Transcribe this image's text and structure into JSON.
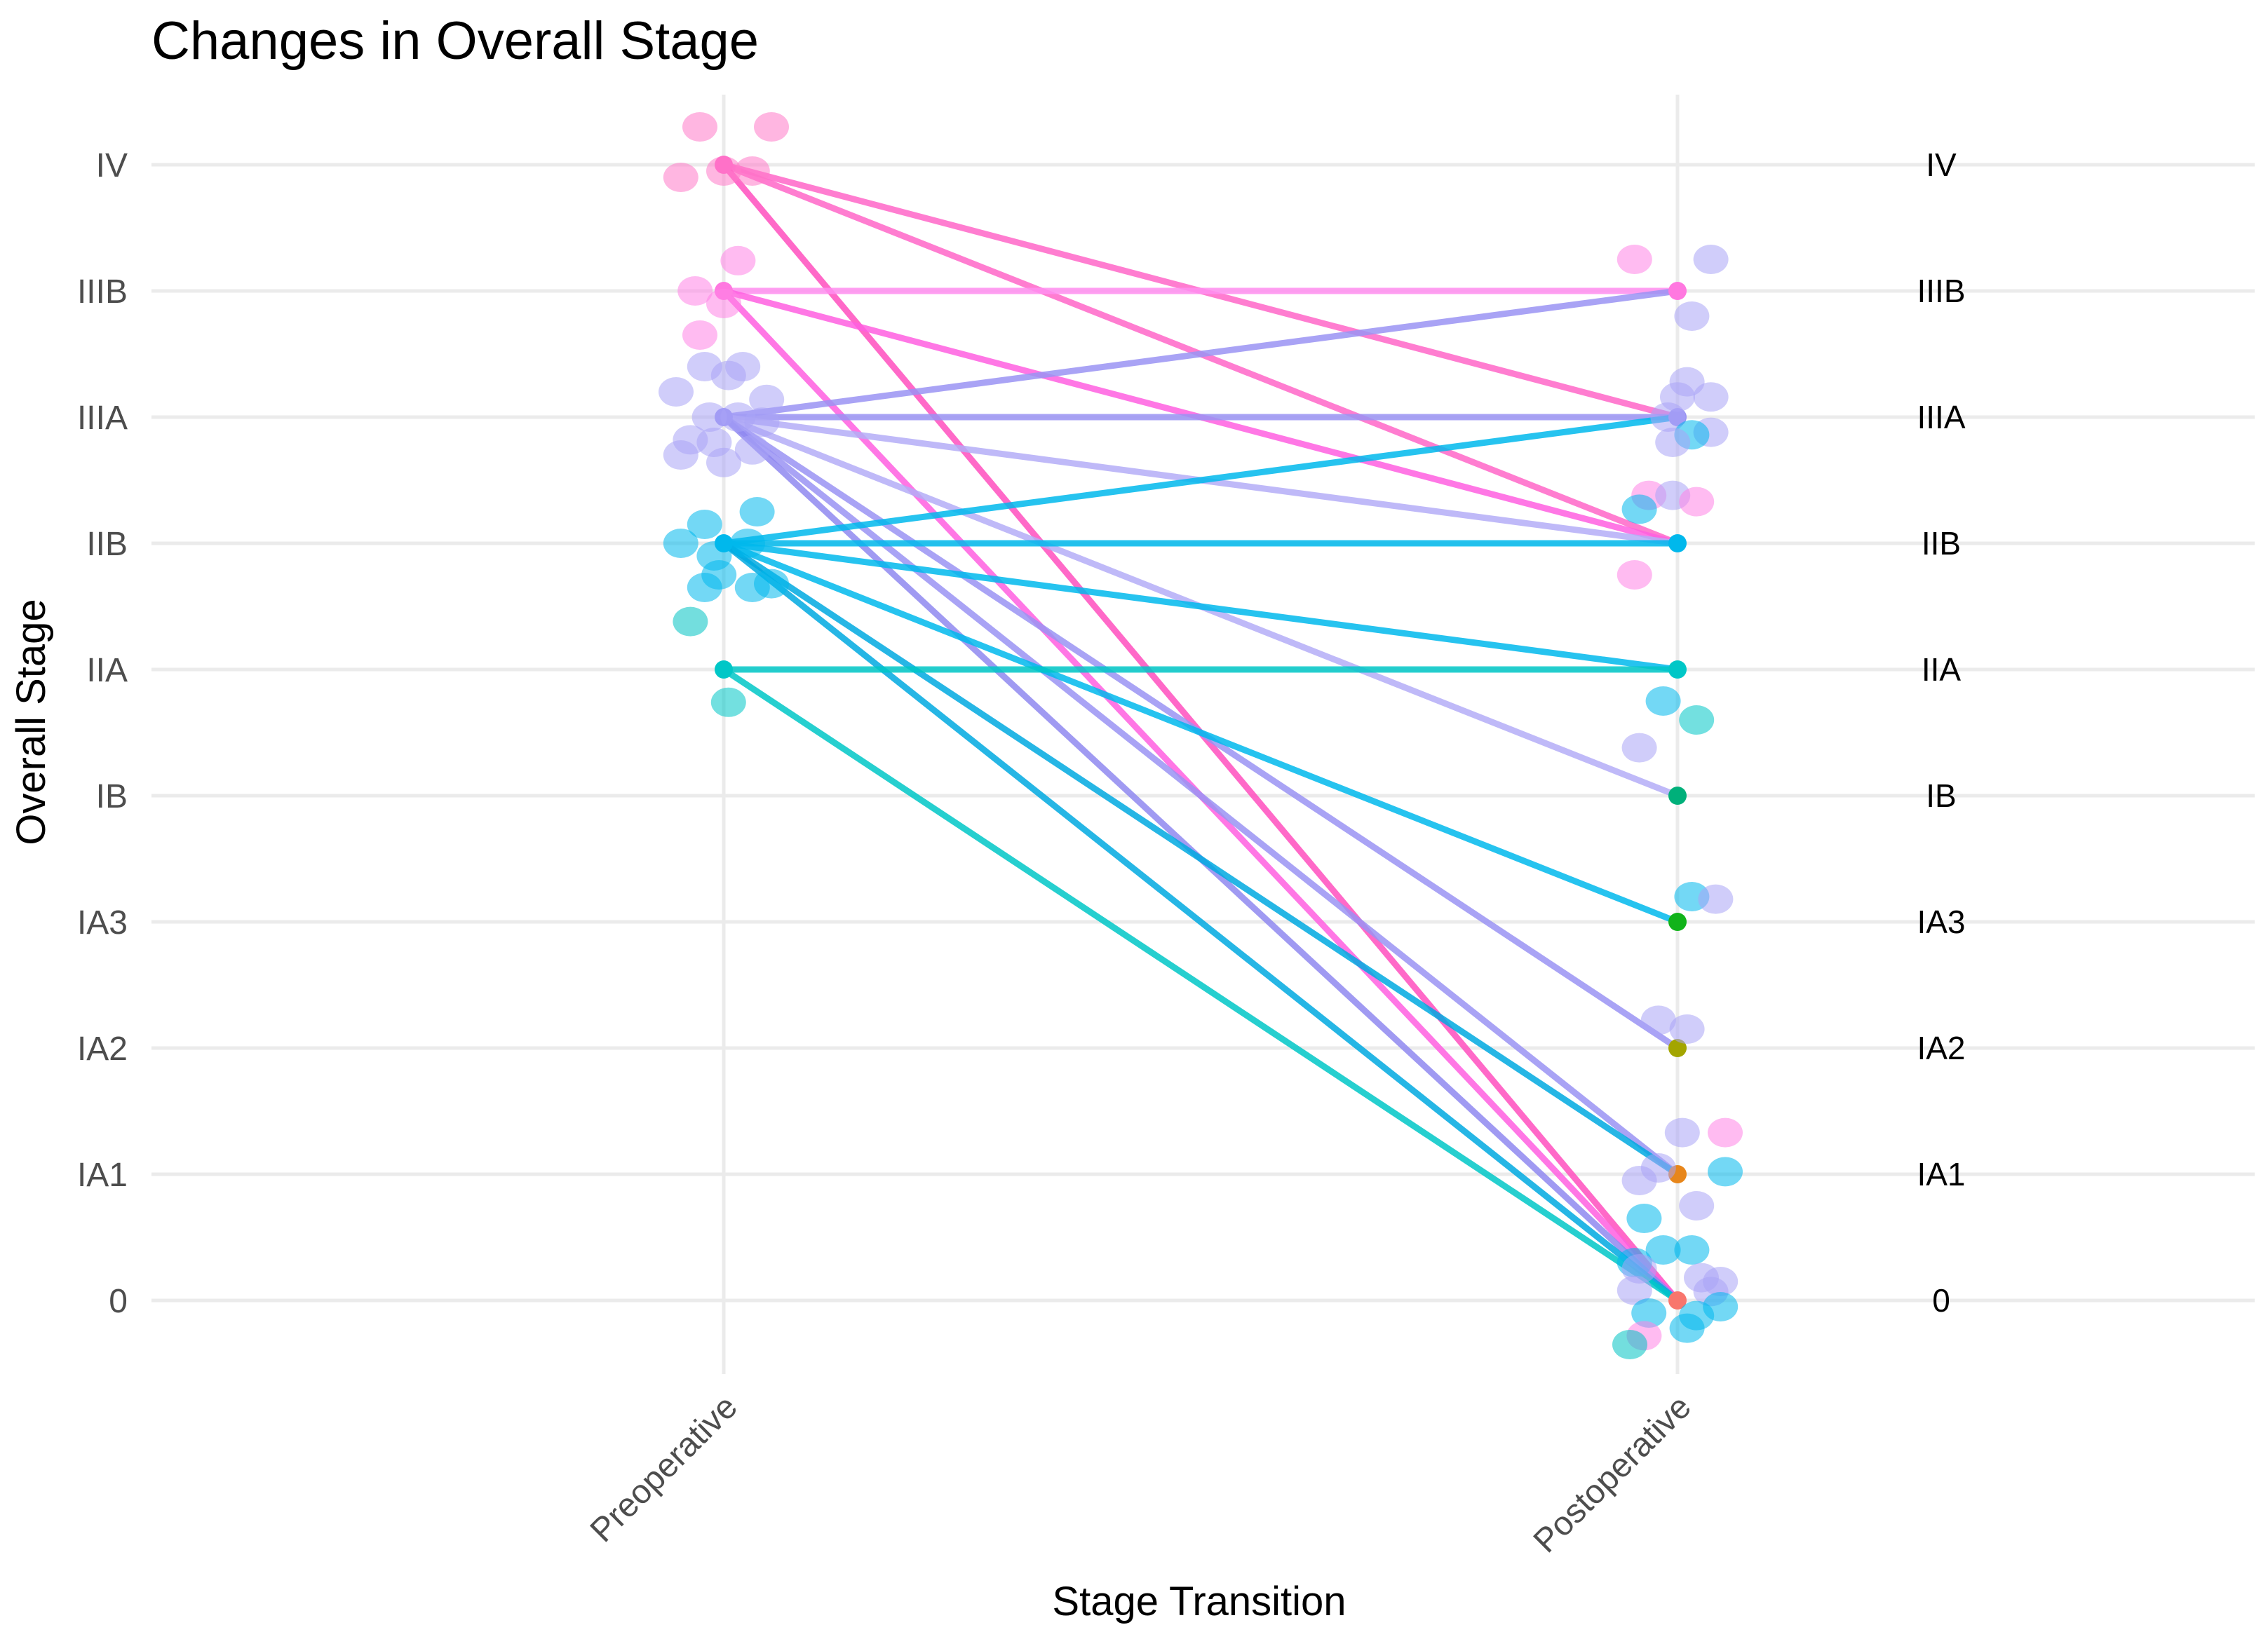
{
  "chart_data": {
    "type": "line",
    "title": "Changes in Overall Stage",
    "xlabel": "Stage Transition",
    "ylabel": "Overall Stage",
    "categories": [
      "Preoperative",
      "Postoperative"
    ],
    "stage_levels": [
      "0",
      "IA1",
      "IA2",
      "IA3",
      "IB",
      "IIA",
      "IIB",
      "IIIA",
      "IIIB",
      "IV"
    ],
    "right_labels": [
      "IV",
      "IIIB",
      "IIIA",
      "IIB",
      "IIA",
      "IB",
      "IA3",
      "IA2",
      "IA1",
      "0"
    ],
    "grid": true,
    "legend": "none",
    "stage_colors": {
      "IV": "#ff66c8",
      "IIIB": "#ff78e0",
      "IIIA": "#9a93f3",
      "IIB": "#00b8ec",
      "IIA": "#00c7c7",
      "IB": "#00b07a",
      "IA3": "#11b31a",
      "IA2": "#a3a500",
      "IA1": "#e7861b",
      "0": "#f8766d"
    },
    "transitions": [
      {
        "pre": "IV",
        "post": "IIIA",
        "color": "#ff66c8"
      },
      {
        "pre": "IV",
        "post": "IIB",
        "color": "#ff66c8"
      },
      {
        "pre": "IV",
        "post": "0",
        "color": "#ff4fbe"
      },
      {
        "pre": "IIIB",
        "post": "IIIB",
        "color": "#ff8ef0"
      },
      {
        "pre": "IIIB",
        "post": "IIB",
        "color": "#ff5fe0"
      },
      {
        "pre": "IIIB",
        "post": "0",
        "color": "#ff5fe0"
      },
      {
        "pre": "IIIA",
        "post": "IIIB",
        "color": "#9a93f3"
      },
      {
        "pre": "IIIA",
        "post": "IIIA",
        "color": "#9a93f3"
      },
      {
        "pre": "IIIA",
        "post": "IIB",
        "color": "#b4adf7"
      },
      {
        "pre": "IIIA",
        "post": "IB",
        "color": "#b4adf7"
      },
      {
        "pre": "IIIA",
        "post": "IA2",
        "color": "#9a93f3"
      },
      {
        "pre": "IIIA",
        "post": "IA1",
        "color": "#9a93f3"
      },
      {
        "pre": "IIIA",
        "post": "0",
        "color": "#8f88f0"
      },
      {
        "pre": "IIB",
        "post": "IIIA",
        "color": "#00b8ec"
      },
      {
        "pre": "IIB",
        "post": "IIB",
        "color": "#00b8ec"
      },
      {
        "pre": "IIB",
        "post": "IIA",
        "color": "#00b8ec"
      },
      {
        "pre": "IIB",
        "post": "IA3",
        "color": "#00b8ec"
      },
      {
        "pre": "IIB",
        "post": "IA1",
        "color": "#00a9e0"
      },
      {
        "pre": "IIB",
        "post": "0",
        "color": "#00a9e0"
      },
      {
        "pre": "IIA",
        "post": "IIA",
        "color": "#00c7c7"
      },
      {
        "pre": "IIA",
        "post": "0",
        "color": "#00c7c7"
      }
    ],
    "pre_points": [
      {
        "stage": "IV",
        "dx": -0.05,
        "dy": 0.3,
        "color": "#ff7ac8"
      },
      {
        "stage": "IV",
        "dx": -0.09,
        "dy": -0.1,
        "color": "#ff7ac8"
      },
      {
        "stage": "IV",
        "dx": 0.0,
        "dy": -0.05,
        "color": "#ff7ac8"
      },
      {
        "stage": "IV",
        "dx": 0.06,
        "dy": -0.05,
        "color": "#ff7ac8"
      },
      {
        "stage": "IV",
        "dx": 0.1,
        "dy": 0.3,
        "color": "#ff7ac8"
      },
      {
        "stage": "IIIB",
        "dx": 0.03,
        "dy": 0.24,
        "color": "#ff84e6"
      },
      {
        "stage": "IIIB",
        "dx": -0.06,
        "dy": 0.0,
        "color": "#ff84e6"
      },
      {
        "stage": "IIIB",
        "dx": 0.0,
        "dy": -0.1,
        "color": "#ff84e6"
      },
      {
        "stage": "IIIB",
        "dx": -0.05,
        "dy": -0.35,
        "color": "#ff84e6"
      },
      {
        "stage": "IIIA",
        "dx": -0.04,
        "dy": 0.4,
        "color": "#aaa4f5"
      },
      {
        "stage": "IIIA",
        "dx": 0.04,
        "dy": 0.4,
        "color": "#aaa4f5"
      },
      {
        "stage": "IIIA",
        "dx": -0.1,
        "dy": 0.2,
        "color": "#aaa4f5"
      },
      {
        "stage": "IIIA",
        "dx": 0.01,
        "dy": 0.33,
        "color": "#aaa4f5"
      },
      {
        "stage": "IIIA",
        "dx": 0.09,
        "dy": 0.14,
        "color": "#aaa4f5"
      },
      {
        "stage": "IIIA",
        "dx": -0.03,
        "dy": 0.0,
        "color": "#aaa4f5"
      },
      {
        "stage": "IIIA",
        "dx": 0.03,
        "dy": 0.0,
        "color": "#aaa4f5"
      },
      {
        "stage": "IIIA",
        "dx": -0.07,
        "dy": -0.18,
        "color": "#aaa4f5"
      },
      {
        "stage": "IIIA",
        "dx": -0.02,
        "dy": -0.2,
        "color": "#aaa4f5"
      },
      {
        "stage": "IIIA",
        "dx": 0.06,
        "dy": -0.26,
        "color": "#aaa4f5"
      },
      {
        "stage": "IIIA",
        "dx": -0.09,
        "dy": -0.3,
        "color": "#aaa4f5"
      },
      {
        "stage": "IIIA",
        "dx": 0.0,
        "dy": -0.36,
        "color": "#aaa4f5"
      },
      {
        "stage": "IIIA",
        "dx": 0.08,
        "dy": -0.04,
        "color": "#aaa4f5"
      },
      {
        "stage": "IIB",
        "dx": 0.07,
        "dy": 0.25,
        "color": "#00b8ec"
      },
      {
        "stage": "IIB",
        "dx": -0.04,
        "dy": 0.15,
        "color": "#00b8ec"
      },
      {
        "stage": "IIB",
        "dx": -0.09,
        "dy": 0.0,
        "color": "#00b8ec"
      },
      {
        "stage": "IIB",
        "dx": 0.05,
        "dy": 0.0,
        "color": "#00b8ec"
      },
      {
        "stage": "IIB",
        "dx": -0.02,
        "dy": -0.1,
        "color": "#00b8ec"
      },
      {
        "stage": "IIB",
        "dx": -0.01,
        "dy": -0.25,
        "color": "#00b8ec"
      },
      {
        "stage": "IIB",
        "dx": -0.04,
        "dy": -0.35,
        "color": "#00b8ec"
      },
      {
        "stage": "IIB",
        "dx": 0.06,
        "dy": -0.35,
        "color": "#00b8ec"
      },
      {
        "stage": "IIB",
        "dx": 0.1,
        "dy": -0.32,
        "color": "#00b8ec"
      },
      {
        "stage": "IIB",
        "dx": -0.07,
        "dy": -0.62,
        "color": "#00c2c2"
      },
      {
        "stage": "IIA",
        "dx": 0.01,
        "dy": -0.26,
        "color": "#00c7c7"
      }
    ],
    "post_points": [
      {
        "stage": "IIIB",
        "dx": -0.09,
        "dy": 0.25,
        "color": "#ff84e6"
      },
      {
        "stage": "IIIB",
        "dx": 0.07,
        "dy": 0.25,
        "color": "#aaa4f5"
      },
      {
        "stage": "IIIB",
        "dx": 0.03,
        "dy": -0.2,
        "color": "#aaa4f5"
      },
      {
        "stage": "IIIA",
        "dx": 0.02,
        "dy": 0.28,
        "color": "#aaa4f5"
      },
      {
        "stage": "IIIA",
        "dx": 0.0,
        "dy": 0.16,
        "color": "#aaa4f5"
      },
      {
        "stage": "IIIA",
        "dx": 0.07,
        "dy": 0.16,
        "color": "#aaa4f5"
      },
      {
        "stage": "IIIA",
        "dx": -0.02,
        "dy": 0.0,
        "color": "#aaa4f5"
      },
      {
        "stage": "IIIA",
        "dx": 0.07,
        "dy": -0.12,
        "color": "#aaa4f5"
      },
      {
        "stage": "IIIA",
        "dx": 0.03,
        "dy": -0.14,
        "color": "#00b8ec"
      },
      {
        "stage": "IIIA",
        "dx": -0.01,
        "dy": -0.2,
        "color": "#aaa4f5"
      },
      {
        "stage": "IIB",
        "dx": -0.06,
        "dy": 0.38,
        "color": "#ff84e6"
      },
      {
        "stage": "IIB",
        "dx": -0.01,
        "dy": 0.38,
        "color": "#aaa4f5"
      },
      {
        "stage": "IIB",
        "dx": 0.04,
        "dy": 0.33,
        "color": "#ff84e6"
      },
      {
        "stage": "IIB",
        "dx": -0.08,
        "dy": 0.27,
        "color": "#00b8ec"
      },
      {
        "stage": "IIB",
        "dx": -0.09,
        "dy": -0.25,
        "color": "#ff84e6"
      },
      {
        "stage": "IIA",
        "dx": -0.03,
        "dy": -0.25,
        "color": "#00b8ec"
      },
      {
        "stage": "IIA",
        "dx": 0.04,
        "dy": -0.4,
        "color": "#00c7c7"
      },
      {
        "stage": "IB",
        "dx": -0.08,
        "dy": 0.38,
        "color": "#aaa4f5"
      },
      {
        "stage": "IA3",
        "dx": 0.03,
        "dy": 0.2,
        "color": "#00b8ec"
      },
      {
        "stage": "IA3",
        "dx": 0.08,
        "dy": 0.18,
        "color": "#aaa4f5"
      },
      {
        "stage": "IA2",
        "dx": -0.04,
        "dy": 0.22,
        "color": "#aaa4f5"
      },
      {
        "stage": "IA2",
        "dx": 0.02,
        "dy": 0.15,
        "color": "#aaa4f5"
      },
      {
        "stage": "IA1",
        "dx": 0.01,
        "dy": 0.33,
        "color": "#aaa4f5"
      },
      {
        "stage": "IA1",
        "dx": 0.1,
        "dy": 0.33,
        "color": "#ff84e6"
      },
      {
        "stage": "IA1",
        "dx": -0.04,
        "dy": 0.05,
        "color": "#aaa4f5"
      },
      {
        "stage": "IA1",
        "dx": -0.08,
        "dy": -0.05,
        "color": "#aaa4f5"
      },
      {
        "stage": "IA1",
        "dx": 0.1,
        "dy": 0.02,
        "color": "#00b8ec"
      },
      {
        "stage": "IA1",
        "dx": 0.04,
        "dy": -0.25,
        "color": "#aaa4f5"
      },
      {
        "stage": "IA1",
        "dx": -0.07,
        "dy": -0.35,
        "color": "#00b8ec"
      },
      {
        "stage": "0",
        "dx": -0.09,
        "dy": 0.3,
        "color": "#00b8ec"
      },
      {
        "stage": "0",
        "dx": -0.03,
        "dy": 0.4,
        "color": "#00b8ec"
      },
      {
        "stage": "0",
        "dx": 0.03,
        "dy": 0.4,
        "color": "#00b8ec"
      },
      {
        "stage": "0",
        "dx": -0.08,
        "dy": 0.25,
        "color": "#aaa4f5"
      },
      {
        "stage": "0",
        "dx": 0.05,
        "dy": 0.18,
        "color": "#aaa4f5"
      },
      {
        "stage": "0",
        "dx": 0.09,
        "dy": 0.15,
        "color": "#aaa4f5"
      },
      {
        "stage": "0",
        "dx": -0.09,
        "dy": 0.08,
        "color": "#aaa4f5"
      },
      {
        "stage": "0",
        "dx": 0.07,
        "dy": 0.07,
        "color": "#aaa4f5"
      },
      {
        "stage": "0",
        "dx": -0.06,
        "dy": -0.1,
        "color": "#00b8ec"
      },
      {
        "stage": "0",
        "dx": 0.04,
        "dy": -0.12,
        "color": "#00b8ec"
      },
      {
        "stage": "0",
        "dx": 0.09,
        "dy": -0.05,
        "color": "#00b8ec"
      },
      {
        "stage": "0",
        "dx": -0.07,
        "dy": -0.28,
        "color": "#ff84e6"
      },
      {
        "stage": "0",
        "dx": -0.1,
        "dy": -0.35,
        "color": "#00c2c2"
      },
      {
        "stage": "0",
        "dx": 0.02,
        "dy": -0.22,
        "color": "#00b8ec"
      }
    ]
  }
}
